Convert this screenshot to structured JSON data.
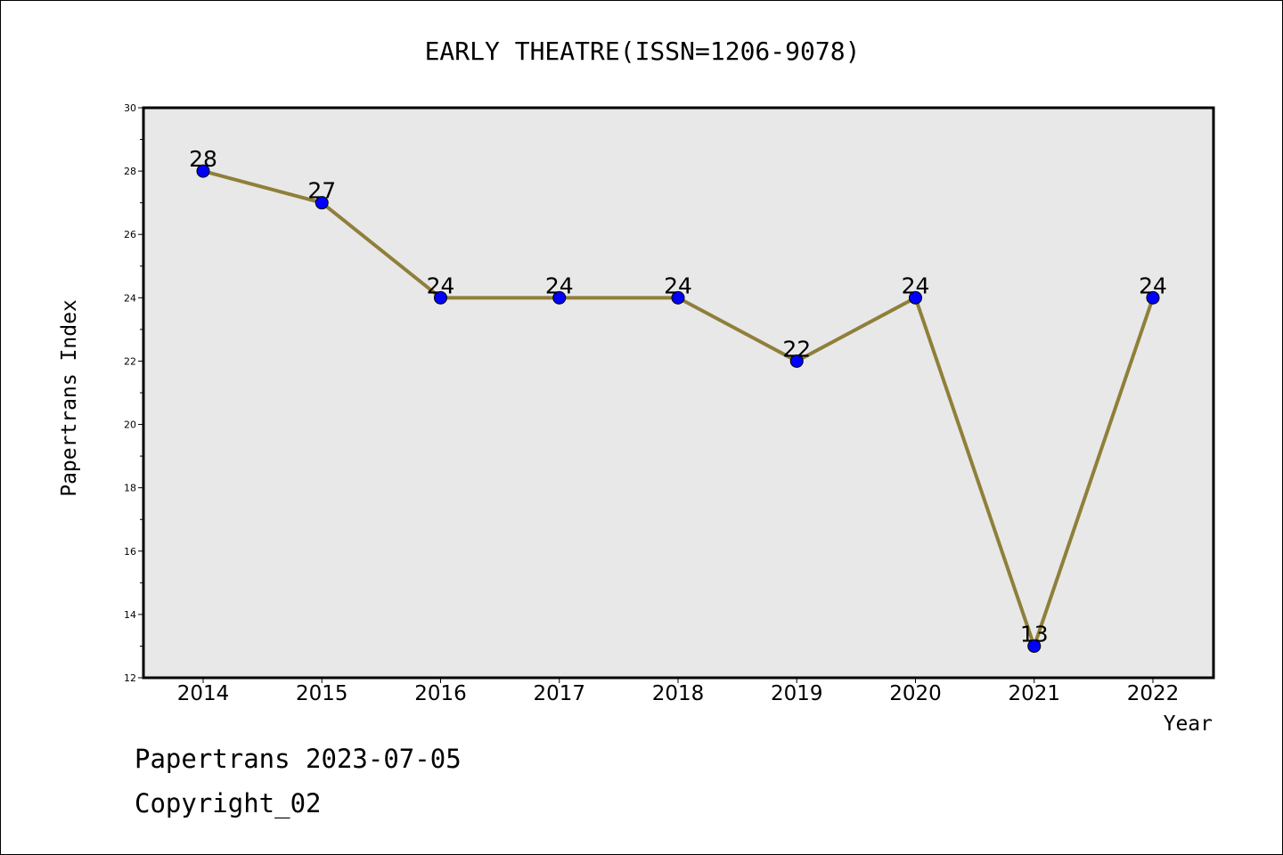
{
  "chart_data": {
    "type": "line",
    "title": "EARLY THEATRE(ISSN=1206-9078)",
    "xlabel": "Year",
    "ylabel": "Papertrans Index",
    "categories": [
      "2014",
      "2015",
      "2016",
      "2017",
      "2018",
      "2019",
      "2020",
      "2021",
      "2022"
    ],
    "values": [
      28,
      27,
      24,
      24,
      24,
      22,
      24,
      13,
      24
    ],
    "ylim": [
      12,
      30
    ],
    "yticks": [
      "12",
      "14",
      "16",
      "18",
      "20",
      "22",
      "24",
      "26",
      "28",
      "30"
    ],
    "grid": false,
    "colors": {
      "line": "#8f7f3a",
      "marker": "#0000ff",
      "plot_background": "#e8e8e8"
    }
  },
  "footer": {
    "line1": "Papertrans 2023-07-05",
    "line2": "Copyright_02"
  }
}
